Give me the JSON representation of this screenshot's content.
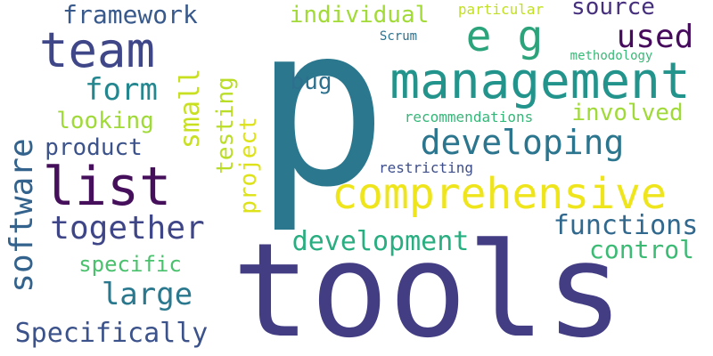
{
  "word_cloud": {
    "words": [
      {
        "text": "tools",
        "color": "#433d84"
      },
      {
        "text": "p",
        "color": "#2b788e"
      },
      {
        "text": "management",
        "color": "#22948b"
      },
      {
        "text": "comprehensive",
        "color": "#efe51c"
      },
      {
        "text": "list",
        "color": "#450f5b"
      },
      {
        "text": "team",
        "color": "#3f4789"
      },
      {
        "text": "e g",
        "color": "#2ba47b"
      },
      {
        "text": "developing",
        "color": "#2b768e"
      },
      {
        "text": "together",
        "color": "#3f4688"
      },
      {
        "text": "software",
        "color": "#33638d"
      },
      {
        "text": "development",
        "color": "#28ae80"
      },
      {
        "text": "framework",
        "color": "#38598c"
      },
      {
        "text": "used",
        "color": "#460b5d"
      },
      {
        "text": "form",
        "color": "#24868e"
      },
      {
        "text": "large",
        "color": "#2a788e"
      },
      {
        "text": "Specifically",
        "color": "#3b528b"
      },
      {
        "text": "functions",
        "color": "#30688e"
      },
      {
        "text": "control",
        "color": "#3cbb75"
      },
      {
        "text": "involved",
        "color": "#a0da39"
      },
      {
        "text": "individual",
        "color": "#a2da37"
      },
      {
        "text": "source",
        "color": "#46307e"
      },
      {
        "text": "small",
        "color": "#c8e020"
      },
      {
        "text": "product",
        "color": "#3b528b"
      },
      {
        "text": "looking",
        "color": "#a0da39"
      },
      {
        "text": "testing",
        "color": "#bade28"
      },
      {
        "text": "project",
        "color": "#dde318"
      },
      {
        "text": "specific",
        "color": "#4ac16d"
      },
      {
        "text": "bug",
        "color": "#2d708e"
      },
      {
        "text": "recommendations",
        "color": "#35b779"
      },
      {
        "text": "restricting",
        "color": "#3d4e8a"
      },
      {
        "text": "particular",
        "color": "#c2df23"
      },
      {
        "text": "methodology",
        "color": "#38b977"
      },
      {
        "text": "Scrum",
        "color": "#2c728e"
      }
    ]
  }
}
